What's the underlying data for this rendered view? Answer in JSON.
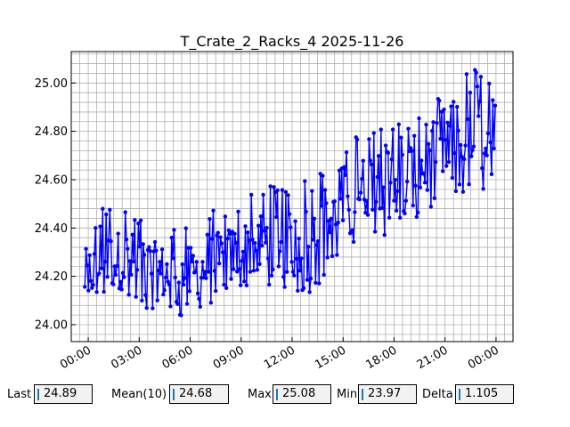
{
  "chart_data": {
    "type": "line",
    "title": "T_Crate_2_Racks_4 2025-11-26",
    "xlabel": "",
    "ylabel": "",
    "x_ticks": [
      "00:00",
      "03:00",
      "06:00",
      "09:00",
      "12:00",
      "15:00",
      "18:00",
      "21:00",
      "00:00"
    ],
    "y_ticks": [
      "24.00",
      "24.20",
      "24.40",
      "24.60",
      "24.80",
      "25.00"
    ],
    "xlim_hours": [
      -1.0,
      25.0
    ],
    "ylim": [
      23.93,
      25.13
    ],
    "grid": true,
    "minor_grid": true,
    "series": [
      {
        "color": "#0000ff",
        "marker": "circle",
        "x_hours": [
          -0.2,
          1.0,
          2.0,
          3.0,
          4.0,
          5.0,
          6.0,
          7.0,
          8.0,
          9.0,
          10.0,
          11.0,
          12.0,
          13.0,
          14.0,
          15.0,
          16.0,
          17.0,
          18.0,
          19.0,
          20.0,
          21.0,
          22.0,
          23.0,
          24.0
        ],
        "values": [
          24.2,
          24.26,
          24.27,
          24.25,
          24.22,
          24.2,
          24.2,
          24.24,
          24.27,
          24.3,
          24.33,
          24.35,
          24.33,
          24.35,
          24.38,
          24.45,
          24.55,
          24.62,
          24.6,
          24.62,
          24.66,
          24.7,
          24.72,
          24.78,
          24.75
        ],
        "band_low": [
          24.1,
          24.12,
          24.1,
          24.06,
          24.04,
          24.04,
          24.02,
          24.05,
          24.1,
          24.16,
          24.16,
          24.15,
          24.14,
          24.12,
          24.2,
          24.28,
          24.38,
          24.34,
          24.38,
          24.42,
          24.46,
          24.48,
          24.5,
          24.56,
          24.52
        ],
        "band_high": [
          24.47,
          24.5,
          24.52,
          24.48,
          24.44,
          24.42,
          24.43,
          24.45,
          24.52,
          24.56,
          24.6,
          24.64,
          24.56,
          24.62,
          24.64,
          24.7,
          24.83,
          24.8,
          24.84,
          24.88,
          24.9,
          24.96,
          25.03,
          25.08,
          24.98
        ]
      }
    ]
  },
  "stats": {
    "last_label": "Last",
    "last_value": "24.89",
    "mean_label": "Mean(10)",
    "mean_value": "24.68",
    "max_label": "Max",
    "max_value": "25.08",
    "min_label": "Min",
    "min_value": "23.97",
    "delta_label": "Delta",
    "delta_value": "1.105"
  }
}
